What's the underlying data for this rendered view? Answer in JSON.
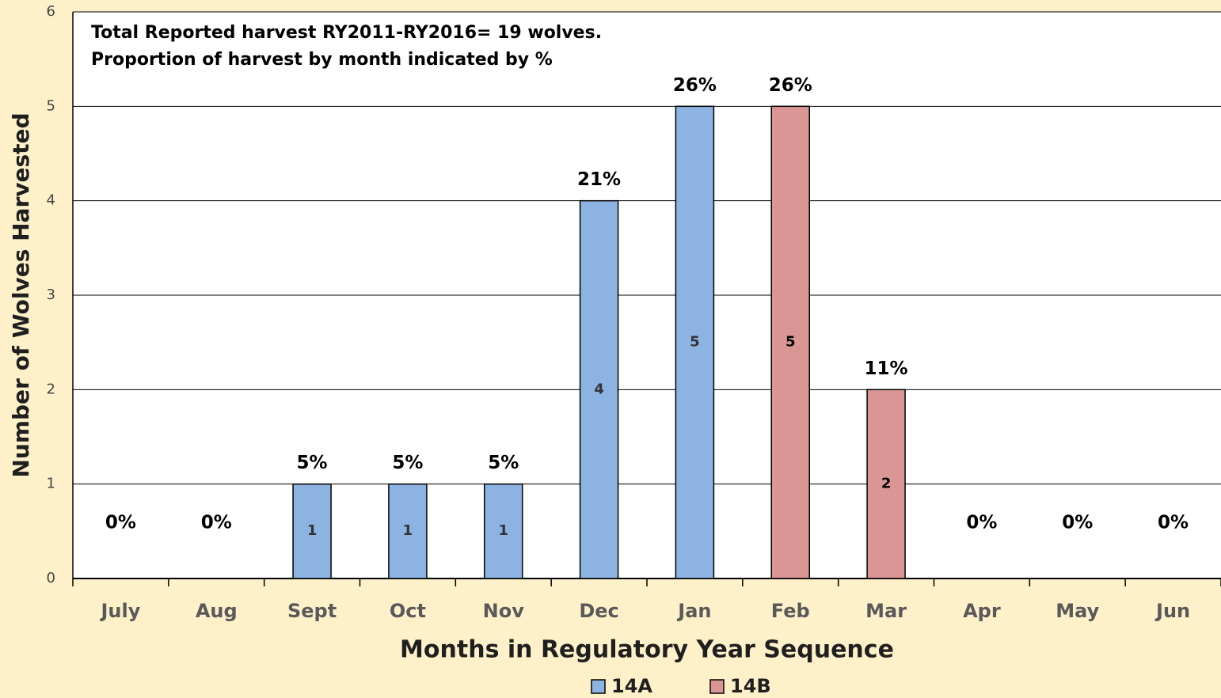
{
  "chart_data": {
    "type": "stacked_bar",
    "annotations": [
      "Total Reported harvest RY2011-RY2016= 19 wolves.",
      "Proportion of harvest by month indicated by %"
    ],
    "x_label": "Months in Regulatory Year Sequence",
    "y_label": "Number of Wolves Harvested",
    "categories": [
      "July",
      "Aug",
      "Sept",
      "Oct",
      "Nov",
      "Dec",
      "Jan",
      "Feb",
      "Mar",
      "Apr",
      "May",
      "Jun"
    ],
    "series": [
      {
        "name": "14A",
        "color": "#8db3e2",
        "values": [
          0,
          0,
          1,
          1,
          1,
          4,
          5,
          0,
          0,
          0,
          0,
          0
        ]
      },
      {
        "name": "14B",
        "color": "#d99694",
        "values": [
          0,
          0,
          0,
          0,
          0,
          0,
          0,
          5,
          2,
          0,
          0,
          0
        ]
      }
    ],
    "percent_labels": [
      "0%",
      "0%",
      "5%",
      "5%",
      "5%",
      "21%",
      "26%",
      "26%",
      "11%",
      "0%",
      "0%",
      "0%"
    ],
    "ylim": [
      0,
      6
    ],
    "yticks": [
      0,
      1,
      2,
      3,
      4,
      5,
      6
    ],
    "grid": true,
    "legend": "bottom"
  }
}
